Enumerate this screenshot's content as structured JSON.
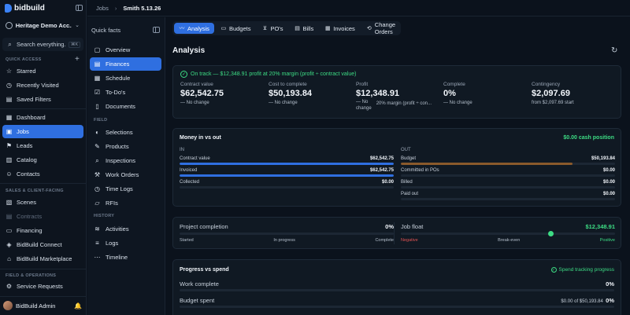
{
  "app": {
    "brand": "bidbuild",
    "org_name": "Heritage Demo Acc..."
  },
  "search": {
    "placeholder": "Search everything...",
    "shortcut": "⌘K"
  },
  "sidebar": {
    "quick_access_label": "QUICK ACCESS",
    "quick_access": [
      {
        "label": "Starred",
        "icon": "star-icon"
      },
      {
        "label": "Recently Visited",
        "icon": "clock-icon"
      },
      {
        "label": "Saved Filters",
        "icon": "filter-icon"
      }
    ],
    "main": [
      {
        "label": "Dashboard",
        "icon": "dashboard-icon"
      },
      {
        "label": "Jobs",
        "icon": "briefcase-icon",
        "active": true
      },
      {
        "label": "Leads",
        "icon": "leads-icon"
      },
      {
        "label": "Catalog",
        "icon": "catalog-icon"
      },
      {
        "label": "Contacts",
        "icon": "contacts-icon"
      }
    ],
    "sales_label": "SALES & CLIENT-FACING",
    "sales": [
      {
        "label": "Scenes",
        "icon": "scenes-icon"
      },
      {
        "label": "Contracts",
        "icon": "contracts-icon",
        "disabled": true
      },
      {
        "label": "Financing",
        "icon": "financing-icon"
      },
      {
        "label": "BidBuild Connect",
        "icon": "connect-icon"
      },
      {
        "label": "BidBuild Marketplace",
        "icon": "marketplace-icon"
      }
    ],
    "field_ops_label": "FIELD & OPERATIONS",
    "field_ops": [
      {
        "label": "Service Requests",
        "icon": "service-icon"
      }
    ],
    "user": {
      "name": "BidBuild Admin"
    }
  },
  "breadcrumb": {
    "parent": "Jobs",
    "current": "Smith 5.13.26"
  },
  "subnav": {
    "title": "Quick facts",
    "top": [
      {
        "label": "Overview",
        "icon": "overview-icon"
      },
      {
        "label": "Finances",
        "icon": "finances-icon",
        "active": true
      },
      {
        "label": "Schedule",
        "icon": "calendar-icon"
      },
      {
        "label": "To-Do's",
        "icon": "todo-icon"
      },
      {
        "label": "Documents",
        "icon": "document-icon"
      }
    ],
    "field_label": "FIELD",
    "field": [
      {
        "label": "Selections",
        "icon": "selections-icon"
      },
      {
        "label": "Products",
        "icon": "products-icon"
      },
      {
        "label": "Inspections",
        "icon": "inspections-icon"
      },
      {
        "label": "Work Orders",
        "icon": "work-orders-icon"
      },
      {
        "label": "Time Logs",
        "icon": "time-icon"
      },
      {
        "label": "RFIs",
        "icon": "rfi-icon"
      }
    ],
    "history_label": "HISTORY",
    "history": [
      {
        "label": "Activities",
        "icon": "activity-icon"
      },
      {
        "label": "Logs",
        "icon": "logs-icon"
      },
      {
        "label": "Timeline",
        "icon": "timeline-icon"
      }
    ]
  },
  "tabs": [
    {
      "label": "Analysis",
      "icon": "analysis-icon",
      "active": true
    },
    {
      "label": "Budgets",
      "icon": "budgets-icon"
    },
    {
      "label": "PO's",
      "icon": "cart-icon"
    },
    {
      "label": "Bills",
      "icon": "bills-icon"
    },
    {
      "label": "Invoices",
      "icon": "invoices-icon"
    },
    {
      "label": "Change Orders",
      "icon": "change-orders-icon"
    }
  ],
  "page_title": "Analysis",
  "summary": {
    "status": "On track — $12,348.91 profit at 20% margin (profit ÷ contract value)",
    "stats": [
      {
        "label": "Contract value",
        "value": "$62,542.75",
        "sub": "— No change"
      },
      {
        "label": "Cost to complete",
        "value": "$50,193.84",
        "sub": "— No change"
      },
      {
        "label": "Profit",
        "value": "$12,348.91",
        "sub_a": "— No",
        "sub_b": "change",
        "sub_c": "20% margin (profit ÷ con..."
      },
      {
        "label": "Complete",
        "value": "0%",
        "sub": "— No change"
      },
      {
        "label": "Contingency",
        "value": "$2,097.69",
        "sub": "from $2,097.69 start"
      }
    ]
  },
  "money": {
    "title": "Money in vs out",
    "cash_position": "$0.00 cash position",
    "in_label": "IN",
    "in_rows": [
      {
        "label": "Contract value",
        "value": "$62,542.75",
        "fill": 1.0,
        "color": "#2f6fe0"
      },
      {
        "label": "Invoiced",
        "value": "$62,542.75",
        "fill": 1.0,
        "color": "#2f6fe0"
      },
      {
        "label": "Collected",
        "value": "$0.00",
        "fill": 0,
        "color": "#2f6fe0"
      }
    ],
    "out_label": "OUT",
    "out_rows": [
      {
        "label": "Budget",
        "value": "$50,193.84",
        "fill": 0.8,
        "color": "#8a5a2b"
      },
      {
        "label": "Committed in POs",
        "value": "$0.00",
        "fill": 0,
        "color": "#8a5a2b"
      },
      {
        "label": "Billed",
        "value": "$0.00",
        "fill": 0,
        "color": "#8a5a2b"
      },
      {
        "label": "Paid out",
        "value": "$0.00",
        "fill": 0,
        "color": "#8a5a2b"
      }
    ]
  },
  "completion": {
    "label": "Project completion",
    "value": "0%",
    "scale": [
      "Started",
      "In progress",
      "Complete"
    ]
  },
  "float": {
    "label": "Job float",
    "value": "$12,348.91",
    "scale": [
      "Negative",
      "Break-even",
      "Positive"
    ],
    "marker": 0.7
  },
  "progress": {
    "title": "Progress vs spend",
    "status": "Spend tracking progress",
    "rows": [
      {
        "label": "Work complete",
        "detail": "",
        "value": "0%"
      },
      {
        "label": "Budget spent",
        "detail": "$0.00 of $50,193.84",
        "value": "0%"
      }
    ]
  },
  "colors": {
    "accent": "#2f6fe0",
    "positive": "#3ddc84",
    "negative": "#e05252"
  }
}
